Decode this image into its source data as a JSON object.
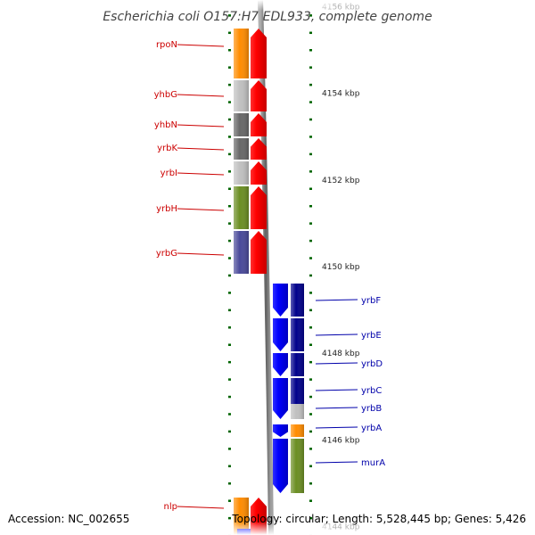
{
  "title": "Escherichia coli O157:H7 EDL933, complete genome",
  "accession": "Accession: NC_002655",
  "topology": "Topology: circular; Length: 5,528,445 bp; Genes: 5,426",
  "scale": {
    "unit": "kbp",
    "labels": [
      {
        "value": 4156,
        "text": "4156 kbp",
        "faded": true
      },
      {
        "value": 4154,
        "text": "4154 kbp"
      },
      {
        "value": 4152,
        "text": "4152 kbp"
      },
      {
        "value": 4150,
        "text": "4150 kbp"
      },
      {
        "value": 4148,
        "text": "4148 kbp"
      },
      {
        "value": 4146,
        "text": "4146 kbp"
      },
      {
        "value": 4144,
        "text": "4144 kbp",
        "faded": true
      }
    ]
  },
  "genes_reverse_strand": [
    {
      "name": "rpoN",
      "cog_color": "#ff8c00"
    },
    {
      "name": "yhbG",
      "cog_color": "#c0c0c0"
    },
    {
      "name": "yhbN",
      "cog_color": "#686868"
    },
    {
      "name": "yrbK",
      "cog_color": "#686868"
    },
    {
      "name": "yrbI",
      "cog_color": "#c0c0c0"
    },
    {
      "name": "yrbH",
      "cog_color": "#6b8e23"
    },
    {
      "name": "yrbG",
      "cog_color": "#4a4a9a"
    },
    {
      "name": "nlp",
      "cog_color": "#ff8c00"
    }
  ],
  "genes_forward_strand": [
    {
      "name": "yrbF",
      "cog_color": "#00008b"
    },
    {
      "name": "yrbE",
      "cog_color": "#00008b"
    },
    {
      "name": "yrbD",
      "cog_color": "#00008b"
    },
    {
      "name": "yrbC",
      "cog_color": "#00008b"
    },
    {
      "name": "yrbB",
      "cog_color": "#c0c0c0"
    },
    {
      "name": "yrbA",
      "cog_color": "#ff8c00"
    },
    {
      "name": "murA",
      "cog_color": "#6b8e23"
    }
  ],
  "colors": {
    "reverse_strand": "#ff0000",
    "forward_strand": "#0000ff",
    "reverse_label": "#cc0000",
    "forward_label": "#0000aa",
    "ticks": "#006400",
    "backbone": "#808080"
  }
}
